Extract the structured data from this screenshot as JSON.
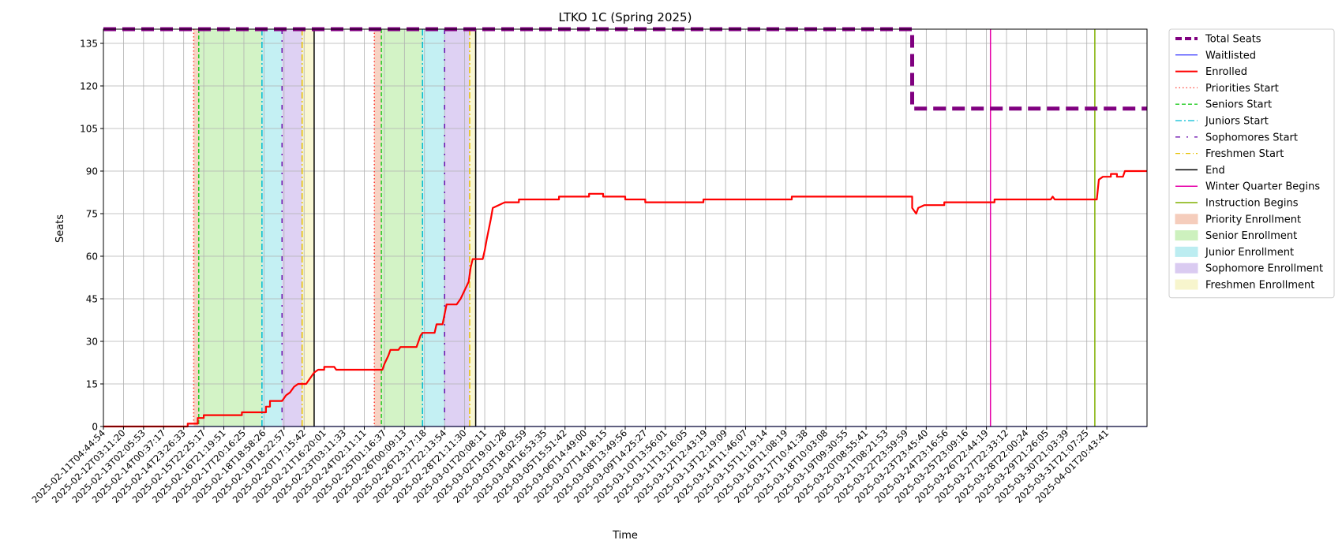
{
  "chart_data": {
    "type": "line",
    "title": "LTKO 1C (Spring 2025)",
    "xlabel": "Time",
    "ylabel": "Seats",
    "ylim": [
      0,
      140
    ],
    "xlim": [
      0,
      52
    ],
    "yticks": [
      0,
      15,
      30,
      45,
      60,
      75,
      90,
      105,
      120,
      135
    ],
    "grid": true,
    "legend_position": "outside-right-top",
    "x_tick_labels": [
      "2025-02-11T04:44:54",
      "2025-02-12T03:11:20",
      "2025-02-13T02:05:53",
      "2025-02-14T00:37:17",
      "2025-02-14T23:26:33",
      "2025-02-15T22:25:17",
      "2025-02-16T21:19:51",
      "2025-02-17T20:16:25",
      "2025-02-18T18:58:26",
      "2025-02-19T18:22:57",
      "2025-02-20T17:15:42",
      "2025-02-21T16:20:01",
      "2025-02-23T03:11:33",
      "2025-02-24T02:11:11",
      "2025-02-25T01:16:37",
      "2025-02-26T00:09:13",
      "2025-02-26T23:17:18",
      "2025-02-27T22:13:54",
      "2025-02-28T21:11:30",
      "2025-03-01T20:08:11",
      "2025-03-02T19:01:28",
      "2025-03-03T18:02:59",
      "2025-03-04T16:53:35",
      "2025-03-05T15:51:42",
      "2025-03-06T14:49:00",
      "2025-03-07T14:18:15",
      "2025-03-08T13:49:56",
      "2025-03-09T14:25:27",
      "2025-03-10T13:56:01",
      "2025-03-11T13:16:05",
      "2025-03-12T12:43:19",
      "2025-03-13T12:19:09",
      "2025-03-14T11:46:07",
      "2025-03-15T11:19:14",
      "2025-03-16T11:08:19",
      "2025-03-17T10:41:38",
      "2025-03-18T10:03:08",
      "2025-03-19T09:30:55",
      "2025-03-20T08:55:41",
      "2025-03-21T08:21:53",
      "2025-03-22T23:59:59",
      "2025-03-23T23:45:40",
      "2025-03-24T23:16:56",
      "2025-03-25T23:09:16",
      "2025-03-26T22:44:19",
      "2025-03-27T22:33:12",
      "2025-03-28T22:00:24",
      "2025-03-29T21:26:05",
      "2025-03-30T21:03:39",
      "2025-03-31T21:07:25",
      "2025-04-01T20:43:41"
    ],
    "series": [
      {
        "name": "Total Seats",
        "color": "#800080",
        "style": "dashed-thick",
        "points": [
          [
            0,
            140
          ],
          [
            40.3,
            140
          ],
          [
            40.3,
            112
          ],
          [
            52,
            112
          ]
        ]
      },
      {
        "name": "Waitlisted",
        "color": "#0000ff",
        "style": "solid-thin",
        "points": [
          [
            0,
            0
          ],
          [
            52,
            0
          ]
        ]
      },
      {
        "name": "Enrolled",
        "color": "#ff0000",
        "style": "solid",
        "points": [
          [
            0,
            0
          ],
          [
            4.2,
            0
          ],
          [
            4.2,
            1
          ],
          [
            4.7,
            1
          ],
          [
            4.7,
            3
          ],
          [
            5.0,
            3
          ],
          [
            5.0,
            4
          ],
          [
            6.9,
            4
          ],
          [
            6.9,
            5
          ],
          [
            8.1,
            5
          ],
          [
            8.1,
            7
          ],
          [
            8.3,
            7
          ],
          [
            8.3,
            9
          ],
          [
            8.9,
            9
          ],
          [
            9.1,
            11
          ],
          [
            9.3,
            12
          ],
          [
            9.5,
            14
          ],
          [
            9.7,
            15
          ],
          [
            10.1,
            15
          ],
          [
            10.3,
            17
          ],
          [
            10.5,
            19
          ],
          [
            10.7,
            20
          ],
          [
            11.0,
            20
          ],
          [
            11.0,
            21
          ],
          [
            11.5,
            21
          ],
          [
            11.6,
            20
          ],
          [
            13.9,
            20
          ],
          [
            14.0,
            22
          ],
          [
            14.2,
            25
          ],
          [
            14.3,
            27
          ],
          [
            14.7,
            27
          ],
          [
            14.8,
            28
          ],
          [
            15.6,
            28
          ],
          [
            15.8,
            32
          ],
          [
            15.9,
            33
          ],
          [
            16.5,
            33
          ],
          [
            16.6,
            36
          ],
          [
            16.9,
            36
          ],
          [
            17.1,
            43
          ],
          [
            17.6,
            43
          ],
          [
            17.8,
            45
          ],
          [
            18.0,
            48
          ],
          [
            18.2,
            51
          ],
          [
            18.3,
            56
          ],
          [
            18.4,
            59
          ],
          [
            18.9,
            59
          ],
          [
            19.0,
            62
          ],
          [
            19.1,
            66
          ],
          [
            19.3,
            73
          ],
          [
            19.4,
            77
          ],
          [
            19.7,
            78
          ],
          [
            20.0,
            79
          ],
          [
            20.7,
            79
          ],
          [
            20.7,
            80
          ],
          [
            22.7,
            80
          ],
          [
            22.7,
            81
          ],
          [
            24.2,
            81
          ],
          [
            24.2,
            82
          ],
          [
            24.9,
            82
          ],
          [
            24.9,
            81
          ],
          [
            26.0,
            81
          ],
          [
            26.0,
            80
          ],
          [
            27.0,
            80
          ],
          [
            27.0,
            79
          ],
          [
            29.9,
            79
          ],
          [
            29.9,
            80
          ],
          [
            34.3,
            80
          ],
          [
            34.3,
            81
          ],
          [
            40.3,
            81
          ],
          [
            40.3,
            77
          ],
          [
            40.5,
            75
          ],
          [
            40.6,
            77
          ],
          [
            40.9,
            78
          ],
          [
            41.9,
            78
          ],
          [
            41.9,
            79
          ],
          [
            44.4,
            79
          ],
          [
            44.4,
            80
          ],
          [
            47.2,
            80
          ],
          [
            47.3,
            81
          ],
          [
            47.4,
            80
          ],
          [
            49.5,
            80
          ],
          [
            49.6,
            87
          ],
          [
            49.8,
            88
          ],
          [
            50.2,
            88
          ],
          [
            50.2,
            89
          ],
          [
            50.5,
            89
          ],
          [
            50.5,
            88
          ],
          [
            50.8,
            88
          ],
          [
            50.9,
            90
          ],
          [
            52,
            90
          ]
        ]
      }
    ],
    "vertical_markers": [
      {
        "name": "Priorities Start",
        "color": "#ff3b30",
        "style": "dotted",
        "x": [
          4.5,
          13.5
        ]
      },
      {
        "name": "Seniors Start",
        "color": "#22cc22",
        "style": "dashed",
        "x": [
          4.75,
          13.85
        ]
      },
      {
        "name": "Juniors Start",
        "color": "#00bcd4",
        "style": "dashdot",
        "x": [
          7.9,
          15.9
        ]
      },
      {
        "name": "Sophomores Start",
        "color": "#6a0dad",
        "style": "dashdot-sparse",
        "x": [
          8.9,
          17.0
        ]
      },
      {
        "name": "Freshmen Start",
        "color": "#e6c000",
        "style": "dashdot",
        "x": [
          9.9,
          18.25
        ]
      },
      {
        "name": "End",
        "color": "#000000",
        "style": "solid",
        "x": [
          10.5,
          18.55
        ]
      },
      {
        "name": "Winter Quarter Begins",
        "color": "#e600a8",
        "style": "solid",
        "x": [
          44.2
        ]
      },
      {
        "name": "Instruction Begins",
        "color": "#80b000",
        "style": "solid",
        "x": [
          49.4
        ]
      }
    ],
    "shaded_regions": [
      {
        "name": "Priority Enrollment",
        "color": "#f5c8b5",
        "ranges": [
          [
            4.5,
            4.75
          ],
          [
            13.5,
            13.85
          ]
        ]
      },
      {
        "name": "Senior Enrollment",
        "color": "#c8f0b8",
        "ranges": [
          [
            4.75,
            7.9
          ],
          [
            13.85,
            15.9
          ]
        ]
      },
      {
        "name": "Junior Enrollment",
        "color": "#b5ecf0",
        "ranges": [
          [
            7.9,
            8.9
          ],
          [
            15.9,
            17.0
          ]
        ]
      },
      {
        "name": "Sophomore Enrollment",
        "color": "#d6c6f0",
        "ranges": [
          [
            8.9,
            9.9
          ],
          [
            17.0,
            18.25
          ]
        ]
      },
      {
        "name": "Freshmen Enrollment",
        "color": "#f7f5c8",
        "ranges": [
          [
            9.9,
            10.5
          ],
          [
            18.25,
            18.55
          ]
        ]
      }
    ],
    "legend": [
      {
        "label": "Total Seats",
        "kind": "line",
        "color": "#800080",
        "dash": "8,4",
        "width": 4
      },
      {
        "label": "Waitlisted",
        "kind": "line",
        "color": "#0000ff",
        "dash": "",
        "width": 1
      },
      {
        "label": "Enrolled",
        "kind": "line",
        "color": "#ff0000",
        "dash": "",
        "width": 2
      },
      {
        "label": "Priorities Start",
        "kind": "line",
        "color": "#ff3b30",
        "dash": "1.5,3",
        "width": 1.3
      },
      {
        "label": "Seniors Start",
        "kind": "line",
        "color": "#22cc22",
        "dash": "5,3",
        "width": 1.3
      },
      {
        "label": "Juniors Start",
        "kind": "line",
        "color": "#00bcd4",
        "dash": "8,3,2,3",
        "width": 1.3
      },
      {
        "label": "Sophomores Start",
        "kind": "line",
        "color": "#6a0dad",
        "dash": "6,8,2,8",
        "width": 1.3
      },
      {
        "label": "Freshmen Start",
        "kind": "line",
        "color": "#e6c000",
        "dash": "6,3,1,3",
        "width": 1.3
      },
      {
        "label": "End",
        "kind": "line",
        "color": "#000000",
        "dash": "",
        "width": 1.5
      },
      {
        "label": "Winter Quarter Begins",
        "kind": "line",
        "color": "#e600a8",
        "dash": "",
        "width": 1.5
      },
      {
        "label": "Instruction Begins",
        "kind": "line",
        "color": "#80b000",
        "dash": "",
        "width": 1.5
      },
      {
        "label": "Priority Enrollment",
        "kind": "patch",
        "color": "#f5c8b5"
      },
      {
        "label": "Senior Enrollment",
        "kind": "patch",
        "color": "#c8f0b8"
      },
      {
        "label": "Junior Enrollment",
        "kind": "patch",
        "color": "#b5ecf0"
      },
      {
        "label": "Sophomore Enrollment",
        "kind": "patch",
        "color": "#d6c6f0"
      },
      {
        "label": "Freshmen Enrollment",
        "kind": "patch",
        "color": "#f7f5c8"
      }
    ]
  }
}
